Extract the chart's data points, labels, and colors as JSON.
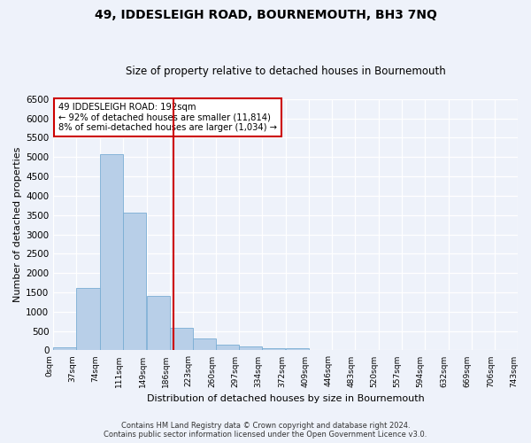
{
  "title": "49, IDDESLEIGH ROAD, BOURNEMOUTH, BH3 7NQ",
  "subtitle": "Size of property relative to detached houses in Bournemouth",
  "xlabel": "Distribution of detached houses by size in Bournemouth",
  "ylabel": "Number of detached properties",
  "bar_values": [
    75,
    1620,
    5080,
    3570,
    1400,
    590,
    300,
    150,
    100,
    65,
    60,
    0,
    0,
    0,
    0,
    0,
    0,
    0,
    0,
    0
  ],
  "bin_edges": [
    0,
    37,
    74,
    111,
    149,
    186,
    223,
    260,
    297,
    334,
    372,
    409,
    446,
    483,
    520,
    557,
    594,
    632,
    669,
    706,
    743
  ],
  "tick_labels": [
    "0sqm",
    "37sqm",
    "74sqm",
    "111sqm",
    "149sqm",
    "186sqm",
    "223sqm",
    "260sqm",
    "297sqm",
    "334sqm",
    "372sqm",
    "409sqm",
    "446sqm",
    "483sqm",
    "520sqm",
    "557sqm",
    "594sqm",
    "632sqm",
    "669sqm",
    "706sqm",
    "743sqm"
  ],
  "bar_color": "#b8cfe8",
  "bar_edge_color": "#7aadd4",
  "vline_value": 192,
  "vline_color": "#cc0000",
  "annotation_title": "49 IDDESLEIGH ROAD: 192sqm",
  "annotation_line1": "← 92% of detached houses are smaller (11,814)",
  "annotation_line2": "8% of semi-detached houses are larger (1,034) →",
  "annotation_box_color": "#cc0000",
  "ylim": [
    0,
    6500
  ],
  "yticks": [
    0,
    500,
    1000,
    1500,
    2000,
    2500,
    3000,
    3500,
    4000,
    4500,
    5000,
    5500,
    6000,
    6500
  ],
  "footer_line1": "Contains HM Land Registry data © Crown copyright and database right 2024.",
  "footer_line2": "Contains public sector information licensed under the Open Government Licence v3.0.",
  "bg_color": "#eef2fa",
  "plot_bg_color": "#eef2fa",
  "title_fontsize": 10,
  "subtitle_fontsize": 8.5,
  "ylabel_fontsize": 8,
  "xlabel_fontsize": 8,
  "ytick_fontsize": 7.5,
  "xtick_fontsize": 6.5,
  "footer_fontsize": 6
}
